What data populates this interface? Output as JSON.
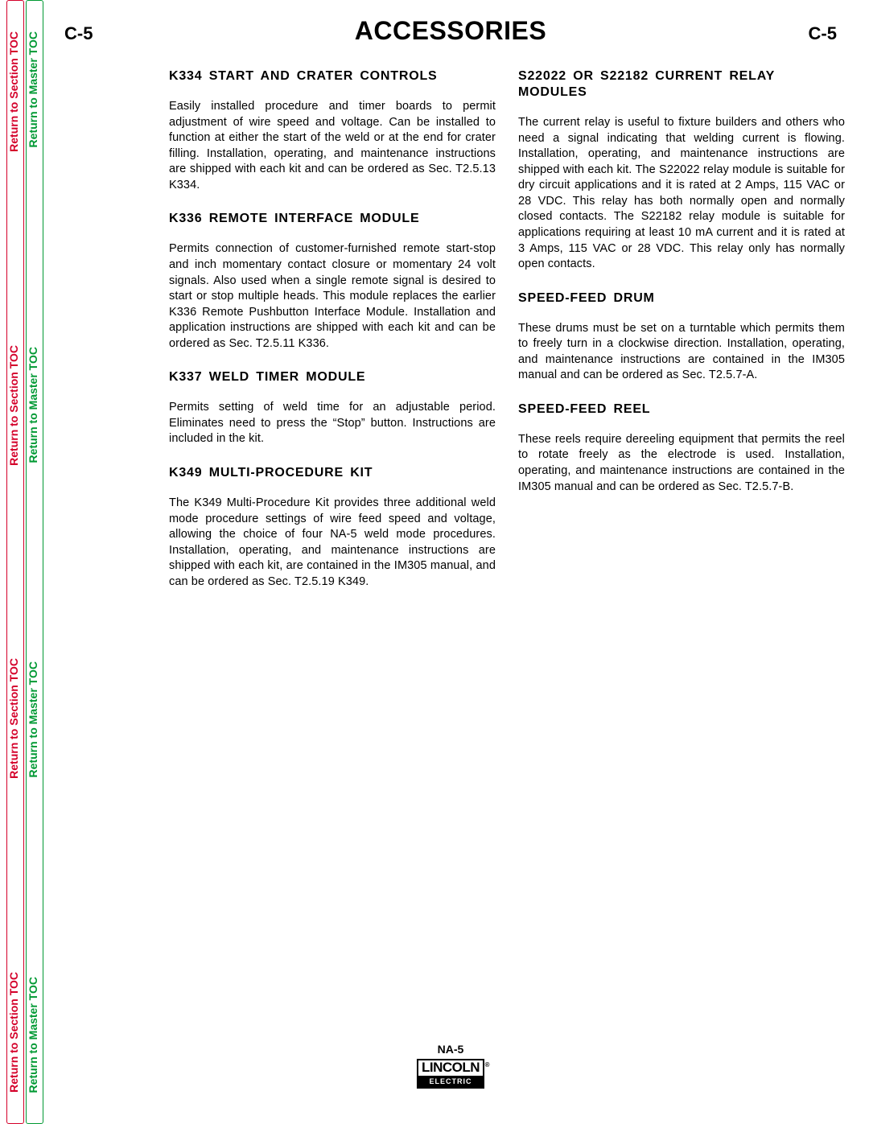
{
  "sideTabs": {
    "sectionLabel": "Return to Section TOC",
    "masterLabel": "Return to Master TOC",
    "colors": {
      "section": "#d4002a",
      "master": "#009933"
    }
  },
  "header": {
    "leftCode": "C-5",
    "title": "ACCESSORIES",
    "rightCode": "C-5"
  },
  "leftColumn": [
    {
      "heading": "K334 START AND CRATER CONTROLS",
      "body": "Easily installed procedure and timer boards to permit adjustment of wire speed and voltage.  Can be installed to function at either the start of the weld or at the end for crater filling.  Installation, operating, and maintenance instructions are shipped with each kit and can be ordered as Sec. T2.5.13 K334."
    },
    {
      "heading": "K336 REMOTE INTERFACE MODULE",
      "body": "Permits connection of customer-furnished remote start-stop and inch momentary contact closure or momentary 24 volt signals.  Also used when a single remote signal is desired to start or stop multiple heads.  This module replaces the earlier K336 Remote Pushbutton Interface Module. Installation and application instructions are shipped with each kit and can be ordered as Sec. T2.5.11 K336."
    },
    {
      "heading": "K337 WELD TIMER MODULE",
      "body": "Permits setting of weld time for an adjustable period.  Eliminates need to press the “Stop” button.  Instructions are included in the kit."
    },
    {
      "heading": "K349 MULTI-PROCEDURE KIT",
      "body": "The K349 Multi-Procedure Kit provides three additional weld mode procedure settings of wire feed speed and voltage, allowing the choice of four NA-5 weld mode procedures. Installation, operating, and maintenance instructions are shipped with each kit, are contained in the IM305 manual, and can be ordered as Sec. T2.5.19 K349."
    }
  ],
  "rightColumn": [
    {
      "heading": "S22022 OR S22182 CURRENT RELAY MODULES",
      "body": "The current relay is useful to fixture builders and others who need a signal indicating that welding current is flowing.  Installation, operating, and maintenance instructions are shipped with each kit. The S22022 relay module is suitable for dry circuit applications and it is rated at 2 Amps, 115 VAC or 28 VDC. This relay has both normally open and normally closed contacts. The S22182 relay module is suitable for applications requiring at least 10 mA current and it is rated at 3 Amps, 115 VAC or 28 VDC. This relay only has normally open contacts."
    },
    {
      "heading": "SPEED-FEED DRUM",
      "body": "These drums must be set on a turntable which permits them to freely turn in a clockwise direction.  Installation, operating, and maintenance instructions are contained in the IM305 manual and can be ordered as Sec. T2.5.7-A."
    },
    {
      "heading": "SPEED-FEED REEL",
      "body": "These reels require dereeling equipment that permits the reel to rotate freely as the electrode is used.  Installation, operating, and maintenance instructions are contained in the IM305 manual and can be ordered as Sec. T2.5.7-B."
    }
  ],
  "footer": {
    "code": "NA-5",
    "logoTop": "LINCOLN",
    "logoBottom": "ELECTRIC"
  }
}
